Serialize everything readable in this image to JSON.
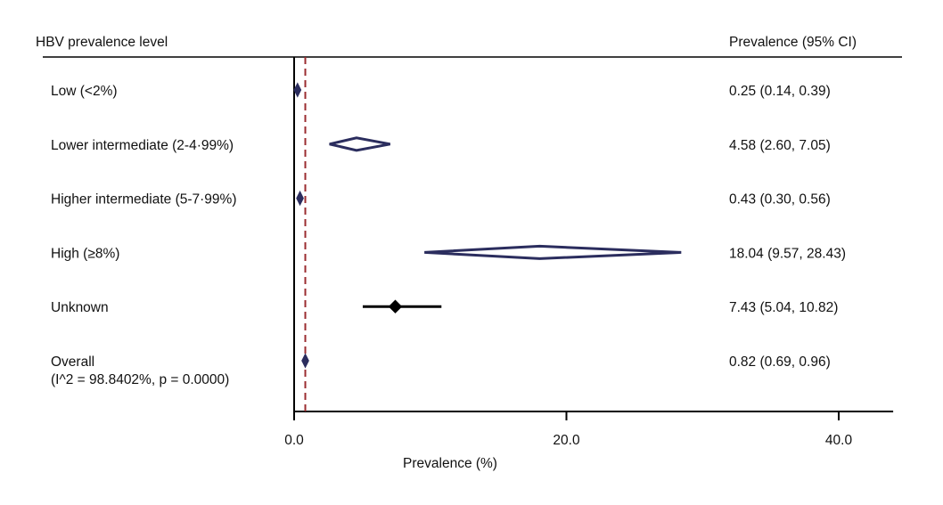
{
  "chart_data": {
    "type": "forest",
    "headers": {
      "left": "HBV prevalence level",
      "right": "Prevalence (95% CI)"
    },
    "xlabel": "Prevalence (%)",
    "xlim": [
      0,
      44
    ],
    "xticks": [
      0,
      20,
      40
    ],
    "xtick_labels": [
      "0.0",
      "20.0",
      "40.0"
    ],
    "reference_line": {
      "x": 0.82,
      "style": "dashed",
      "color": "#9b2d30"
    },
    "colors": {
      "subgroup": "#2b2d5e",
      "study": "#000000",
      "axis": "#000000"
    },
    "rows": [
      {
        "label": "Low (<2%)",
        "sublabel": "",
        "estimate": 0.25,
        "lower": 0.14,
        "upper": 0.39,
        "ci_text": "0.25 (0.14, 0.39)",
        "marker": "diamond"
      },
      {
        "label": "Lower intermediate (2-4·99%)",
        "sublabel": "",
        "estimate": 4.58,
        "lower": 2.6,
        "upper": 7.05,
        "ci_text": "4.58 (2.60, 7.05)",
        "marker": "diamond"
      },
      {
        "label": "Higher intermediate (5-7·99%)",
        "sublabel": "",
        "estimate": 0.43,
        "lower": 0.3,
        "upper": 0.56,
        "ci_text": "0.43 (0.30, 0.56)",
        "marker": "diamond"
      },
      {
        "label": "High (≥8%)",
        "sublabel": "",
        "estimate": 18.04,
        "lower": 9.57,
        "upper": 28.43,
        "ci_text": "18.04 (9.57, 28.43)",
        "marker": "diamond"
      },
      {
        "label": "Unknown",
        "sublabel": "",
        "estimate": 7.43,
        "lower": 5.04,
        "upper": 10.82,
        "ci_text": "7.43 (5.04, 10.82)",
        "marker": "point"
      },
      {
        "label": "Overall",
        "sublabel": "(I^2 = 98.8402%, p = 0.0000)",
        "estimate": 0.82,
        "lower": 0.69,
        "upper": 0.96,
        "ci_text": "0.82 (0.69, 0.96)",
        "marker": "diamond"
      }
    ]
  }
}
